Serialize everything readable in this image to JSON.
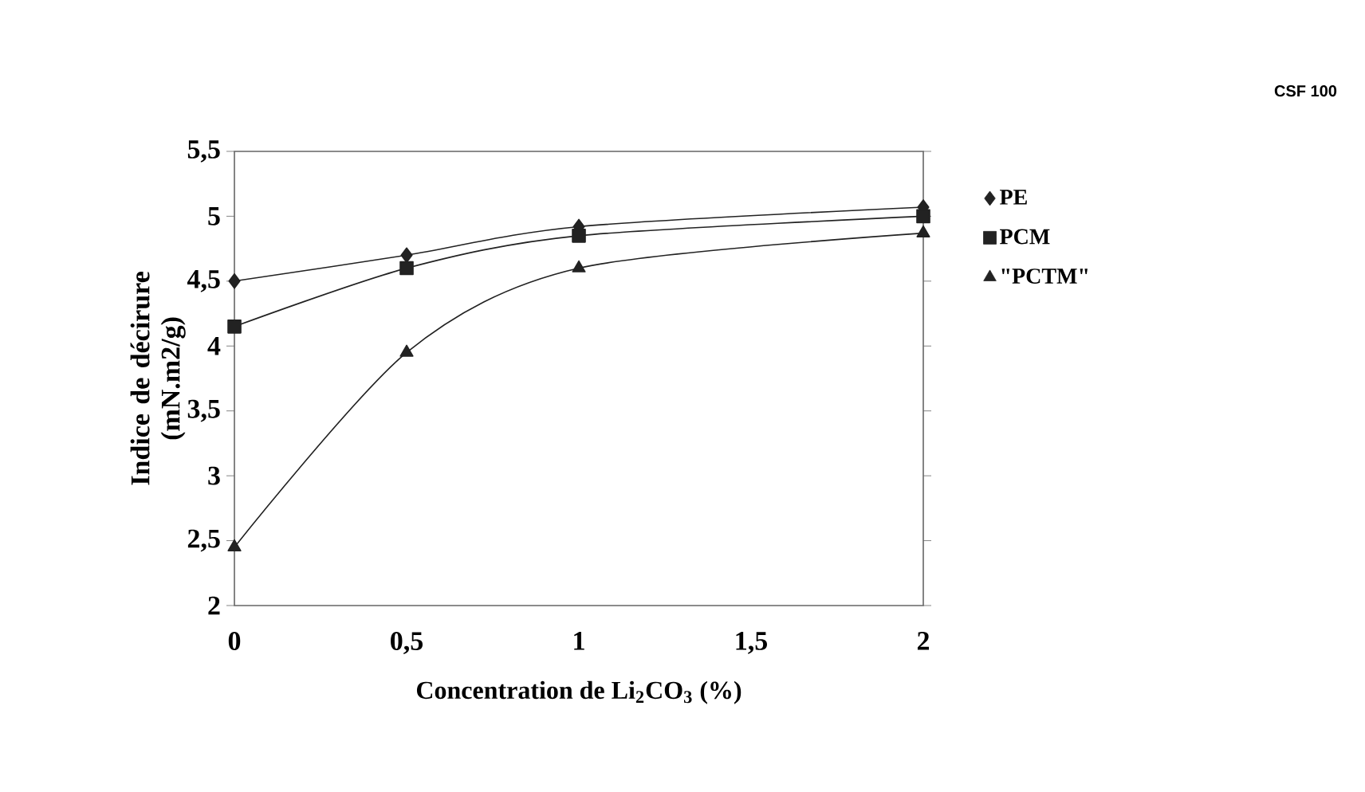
{
  "chart_data": {
    "type": "line",
    "xlabel": "Concentration de Li$_{2}$CO$_{3}$ (%)",
    "ylabel": "Indice de décirure (mN.m2/g)",
    "annotations": [
      "CSF 100"
    ],
    "x": [
      0,
      0.5,
      1,
      2
    ],
    "xlim": [
      0,
      2
    ],
    "xticks": [
      0,
      {
        "value": 0.5,
        "label": "0,5"
      },
      1,
      {
        "value": 1.5,
        "label": "1,5"
      },
      2
    ],
    "ylim": [
      2,
      5.5
    ],
    "yticks": [
      2,
      {
        "value": 2.5,
        "label": "2,5"
      },
      3,
      {
        "value": 3.5,
        "label": "3,5"
      },
      4,
      {
        "value": 4.5,
        "label": "4,5"
      },
      5,
      {
        "value": 5.5,
        "label": "5,5"
      }
    ],
    "legend": "right",
    "series": [
      {
        "name": "PE",
        "color": "#222222",
        "marker": "diamond",
        "values": [
          4.5,
          4.7,
          4.92,
          5.07
        ]
      },
      {
        "name": "PCM",
        "color": "#222222",
        "marker": "square",
        "values": [
          4.15,
          4.6,
          4.85,
          5.0
        ]
      },
      {
        "name": "\"PCTM\"",
        "color": "#222222",
        "marker": "triangle",
        "values": [
          2.45,
          3.95,
          4.6,
          4.87
        ]
      }
    ]
  }
}
